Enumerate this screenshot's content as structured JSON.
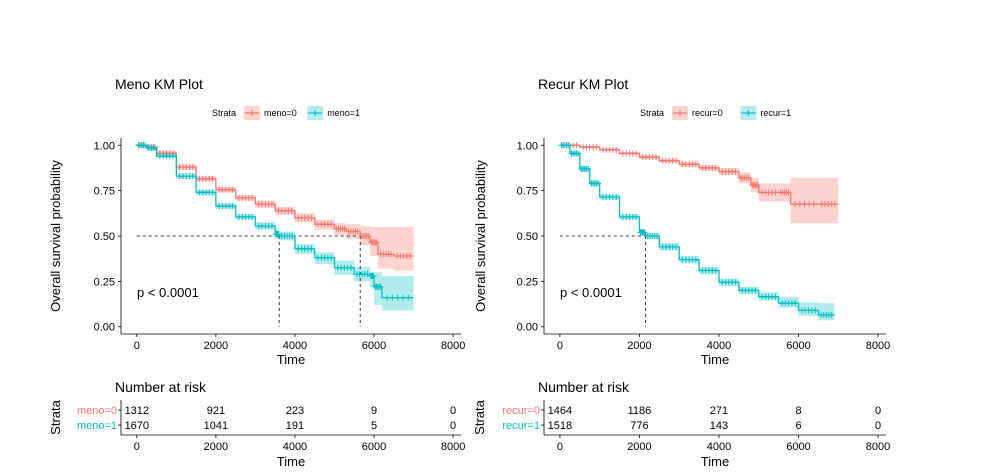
{
  "colors": {
    "group0": "#F8766D",
    "group1": "#00BFC4",
    "band0": "rgba(248,118,109,0.32)",
    "band1": "rgba(0,191,196,0.30)",
    "axis": "#000000",
    "text": "#000000"
  },
  "chart_data": [
    {
      "type": "line",
      "title": "Meno KM Plot",
      "legend_title": "Strata",
      "legend_position": "top",
      "xlabel": "Time",
      "ylabel": "Overall survival probability",
      "xlim": [
        -400,
        8200
      ],
      "ylim": [
        -0.04,
        1.04
      ],
      "xticks": [
        0,
        2000,
        4000,
        6000,
        8000
      ],
      "yticks": [
        0.0,
        0.25,
        0.5,
        0.75,
        1.0
      ],
      "ytick_labels": [
        "0.00",
        "0.25",
        "0.50",
        "0.75",
        "1.00"
      ],
      "grid": false,
      "pvalue": "p < 0.0001",
      "median_line": {
        "y": 0.5,
        "x_values": [
          3600,
          5650
        ]
      },
      "series": [
        {
          "name": "meno=0",
          "x": [
            0,
            250,
            500,
            1000,
            1500,
            2000,
            2500,
            3000,
            3500,
            4000,
            4500,
            5000,
            5300,
            5650,
            5900,
            6100,
            6500,
            7000
          ],
          "y": [
            1.0,
            0.99,
            0.955,
            0.88,
            0.815,
            0.755,
            0.71,
            0.675,
            0.64,
            0.6,
            0.565,
            0.54,
            0.525,
            0.5,
            0.465,
            0.4,
            0.39,
            0.39
          ],
          "lower": [
            1.0,
            0.985,
            0.94,
            0.865,
            0.8,
            0.74,
            0.695,
            0.655,
            0.615,
            0.575,
            0.535,
            0.505,
            0.485,
            0.45,
            0.39,
            0.32,
            0.31,
            0.31
          ],
          "upper": [
            1.0,
            0.995,
            0.97,
            0.895,
            0.83,
            0.77,
            0.725,
            0.695,
            0.66,
            0.625,
            0.59,
            0.57,
            0.565,
            0.555,
            0.55,
            0.55,
            0.55,
            0.55
          ]
        },
        {
          "name": "meno=1",
          "x": [
            0,
            250,
            500,
            1000,
            1500,
            2000,
            2500,
            3000,
            3500,
            3600,
            4000,
            4500,
            5000,
            5500,
            5900,
            6000,
            6200,
            7000
          ],
          "y": [
            1.0,
            0.985,
            0.94,
            0.83,
            0.74,
            0.665,
            0.605,
            0.555,
            0.51,
            0.5,
            0.43,
            0.38,
            0.325,
            0.29,
            0.28,
            0.22,
            0.16,
            0.16
          ],
          "lower": [
            1.0,
            0.98,
            0.93,
            0.815,
            0.725,
            0.65,
            0.59,
            0.535,
            0.485,
            0.475,
            0.4,
            0.345,
            0.285,
            0.25,
            0.22,
            0.12,
            0.09,
            0.09
          ],
          "upper": [
            1.0,
            0.99,
            0.95,
            0.845,
            0.755,
            0.68,
            0.62,
            0.575,
            0.535,
            0.525,
            0.455,
            0.41,
            0.365,
            0.33,
            0.3,
            0.3,
            0.28,
            0.28
          ]
        }
      ],
      "risk_table": {
        "title": "Number at risk",
        "ylabel": "Strata",
        "xlabel": "Time",
        "xticks": [
          0,
          2000,
          4000,
          6000,
          8000
        ],
        "rows": [
          {
            "label": "meno=0",
            "values": [
              1312,
              921,
              223,
              9,
              0
            ]
          },
          {
            "label": "meno=1",
            "values": [
              1670,
              1041,
              191,
              5,
              0
            ]
          }
        ]
      }
    },
    {
      "type": "line",
      "title": "Recur KM Plot",
      "legend_title": "Strata",
      "legend_position": "top",
      "xlabel": "Time",
      "ylabel": "Overall survival probability",
      "xlim": [
        -400,
        8200
      ],
      "ylim": [
        -0.04,
        1.04
      ],
      "xticks": [
        0,
        2000,
        4000,
        6000,
        8000
      ],
      "yticks": [
        0.0,
        0.25,
        0.5,
        0.75,
        1.0
      ],
      "ytick_labels": [
        "0.00",
        "0.25",
        "0.50",
        "0.75",
        "1.00"
      ],
      "grid": false,
      "pvalue": "p < 0.0001",
      "median_line": {
        "y": 0.5,
        "x_values": [
          2150
        ]
      },
      "series": [
        {
          "name": "recur=0",
          "x": [
            0,
            500,
            1000,
            1500,
            2000,
            2500,
            3000,
            3500,
            4000,
            4500,
            4800,
            5000,
            5500,
            5800,
            6500,
            7000
          ],
          "y": [
            1.0,
            0.99,
            0.975,
            0.955,
            0.935,
            0.915,
            0.895,
            0.875,
            0.855,
            0.82,
            0.78,
            0.74,
            0.74,
            0.675,
            0.675,
            0.675
          ],
          "lower": [
            1.0,
            0.985,
            0.97,
            0.95,
            0.925,
            0.905,
            0.88,
            0.86,
            0.835,
            0.79,
            0.74,
            0.69,
            0.69,
            0.57,
            0.57,
            0.57
          ],
          "upper": [
            1.0,
            0.995,
            0.982,
            0.962,
            0.945,
            0.925,
            0.91,
            0.89,
            0.875,
            0.85,
            0.82,
            0.79,
            0.79,
            0.82,
            0.82,
            0.82
          ]
        },
        {
          "name": "recur=1",
          "x": [
            0,
            250,
            500,
            750,
            1000,
            1500,
            2000,
            2150,
            2500,
            3000,
            3500,
            4000,
            4500,
            5000,
            5500,
            6000,
            6500,
            6900
          ],
          "y": [
            1.0,
            0.955,
            0.87,
            0.79,
            0.715,
            0.605,
            0.52,
            0.5,
            0.44,
            0.37,
            0.31,
            0.245,
            0.2,
            0.165,
            0.13,
            0.09,
            0.065,
            0.065
          ],
          "lower": [
            1.0,
            0.945,
            0.855,
            0.775,
            0.7,
            0.59,
            0.505,
            0.485,
            0.42,
            0.35,
            0.29,
            0.225,
            0.18,
            0.145,
            0.105,
            0.06,
            0.035,
            0.035
          ],
          "upper": [
            1.0,
            0.965,
            0.885,
            0.805,
            0.73,
            0.62,
            0.535,
            0.515,
            0.46,
            0.39,
            0.33,
            0.265,
            0.22,
            0.19,
            0.165,
            0.135,
            0.13,
            0.13
          ]
        }
      ],
      "risk_table": {
        "title": "Number at risk",
        "ylabel": "Strata",
        "xlabel": "Time",
        "xticks": [
          0,
          2000,
          4000,
          6000,
          8000
        ],
        "rows": [
          {
            "label": "recur=0",
            "values": [
              1464,
              1186,
              271,
              8,
              0
            ]
          },
          {
            "label": "recur=1",
            "values": [
              1518,
              776,
              143,
              6,
              0
            ]
          }
        ]
      }
    }
  ]
}
